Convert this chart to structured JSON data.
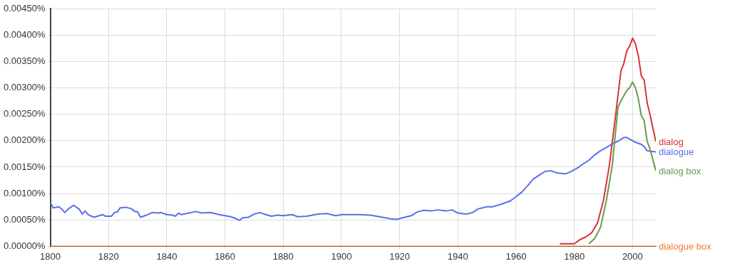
{
  "chart_data": {
    "type": "line",
    "xlim": [
      1800,
      2008
    ],
    "xticks": [
      1800,
      1820,
      1840,
      1860,
      1880,
      1900,
      1920,
      1940,
      1960,
      1980,
      2000
    ],
    "ylim": [
      0,
      0.0045
    ],
    "yticks": [
      {
        "value": 0,
        "label": "0.00000%"
      },
      {
        "value": 0.0005,
        "label": "0.00050%"
      },
      {
        "value": 0.001,
        "label": "0.00100%"
      },
      {
        "value": 0.0015,
        "label": "0.00150%"
      },
      {
        "value": 0.002,
        "label": "0.00200%"
      },
      {
        "value": 0.0025,
        "label": "0.00250%"
      },
      {
        "value": 0.003,
        "label": "0.00300%"
      },
      {
        "value": 0.0035,
        "label": "0.00350%"
      },
      {
        "value": 0.004,
        "label": "0.00400%"
      },
      {
        "value": 0.0045,
        "label": "0.00450%"
      }
    ],
    "grid": true,
    "legend": false,
    "marker": "none",
    "line_style": "solid",
    "series": [
      {
        "name": "dialog",
        "color": "#d8313a",
        "x": [
          1975,
          1980,
          1982,
          1984,
          1986,
          1988,
          1990,
          1992,
          1994,
          1996,
          1997,
          1998,
          1999,
          2000,
          2001,
          2002,
          2003,
          2004,
          2005,
          2006,
          2008
        ],
        "values": [
          5e-05,
          5e-05,
          0.00013,
          0.00018,
          0.00026,
          0.00045,
          0.00087,
          0.00152,
          0.0024,
          0.00332,
          0.00346,
          0.0037,
          0.00379,
          0.00394,
          0.00383,
          0.0036,
          0.00323,
          0.00314,
          0.00272,
          0.00249,
          0.00198
        ]
      },
      {
        "name": "dialogue",
        "color": "#5a6fe6",
        "x": [
          1800,
          1801,
          1803,
          1804,
          1805,
          1806,
          1808,
          1810,
          1811,
          1812,
          1813,
          1815,
          1818,
          1819,
          1821,
          1822,
          1823,
          1824,
          1826,
          1828,
          1829,
          1830,
          1831,
          1833,
          1835,
          1837,
          1838,
          1840,
          1842,
          1843,
          1844,
          1845,
          1850,
          1852,
          1855,
          1858,
          1862,
          1864,
          1865,
          1866,
          1868,
          1870,
          1872,
          1874,
          1876,
          1878,
          1880,
          1883,
          1885,
          1888,
          1892,
          1895,
          1898,
          1900,
          1902,
          1906,
          1910,
          1914,
          1917,
          1919,
          1921,
          1924,
          1926,
          1928,
          1931,
          1933,
          1936,
          1938,
          1940,
          1943,
          1945,
          1947,
          1950,
          1952,
          1955,
          1958,
          1960,
          1962,
          1964,
          1966,
          1968,
          1970,
          1972,
          1974,
          1977,
          1979,
          1981,
          1983,
          1985,
          1987,
          1989,
          1991,
          1993,
          1995,
          1997,
          1998,
          2000,
          2001,
          2003,
          2004,
          2005,
          2006,
          2008
        ],
        "values": [
          0.00083,
          0.00073,
          0.00075,
          0.0007,
          0.00064,
          0.0007,
          0.00078,
          0.0007,
          0.00061,
          0.00067,
          0.0006,
          0.00055,
          0.0006,
          0.00057,
          0.00057,
          0.00064,
          0.00065,
          0.00073,
          0.00074,
          0.00071,
          0.00066,
          0.00065,
          0.00055,
          0.00059,
          0.00064,
          0.00063,
          0.00064,
          0.0006,
          0.00059,
          0.00057,
          0.00063,
          0.0006,
          0.00066,
          0.00063,
          0.00064,
          0.0006,
          0.00056,
          0.00052,
          0.00049,
          0.00054,
          0.00055,
          0.00061,
          0.00064,
          0.0006,
          0.00057,
          0.00059,
          0.00058,
          0.0006,
          0.00056,
          0.00057,
          0.00061,
          0.00062,
          0.00058,
          0.0006,
          0.0006,
          0.0006,
          0.00059,
          0.00055,
          0.00052,
          0.00051,
          0.00054,
          0.00058,
          0.00065,
          0.00068,
          0.00067,
          0.00069,
          0.00067,
          0.00069,
          0.00063,
          0.00061,
          0.00064,
          0.00071,
          0.00075,
          0.00075,
          0.0008,
          0.00086,
          0.00094,
          0.00103,
          0.00115,
          0.00128,
          0.00135,
          0.00142,
          0.00143,
          0.00139,
          0.00137,
          0.00142,
          0.00148,
          0.00156,
          0.00163,
          0.00173,
          0.00181,
          0.00187,
          0.00194,
          0.00199,
          0.00206,
          0.00206,
          0.002,
          0.00197,
          0.00193,
          0.00189,
          0.00181,
          0.0018,
          0.00179
        ]
      },
      {
        "name": "dialog box",
        "color": "#6a9a4c",
        "x": [
          1985,
          1987,
          1989,
          1991,
          1993,
          1995,
          1996,
          1998,
          1999,
          2000,
          2001,
          2002,
          2003,
          2004,
          2005,
          2006,
          2008
        ],
        "values": [
          5e-05,
          0.00015,
          0.00036,
          0.00087,
          0.00152,
          0.00263,
          0.00275,
          0.00295,
          0.003,
          0.00311,
          0.003,
          0.00279,
          0.00247,
          0.00238,
          0.00199,
          0.00184,
          0.00143
        ]
      },
      {
        "name": "dialogue box",
        "color": "#f07a30",
        "x": [
          1800,
          1980,
          1990,
          1996,
          2000,
          2008
        ],
        "values": [
          0,
          0,
          0,
          0,
          0,
          0
        ]
      }
    ]
  }
}
